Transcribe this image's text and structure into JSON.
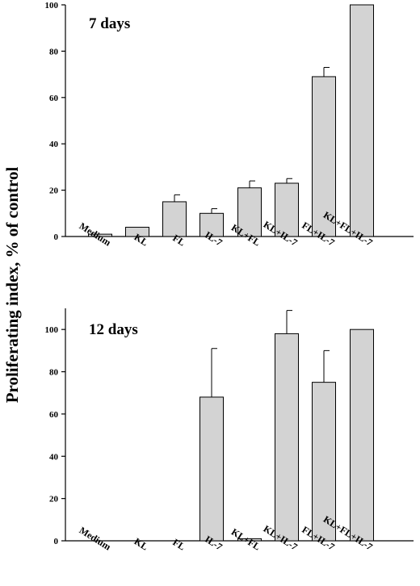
{
  "chart_data": [
    {
      "type": "bar",
      "title": "7 days",
      "ylabel": "Proliferating index, % of control",
      "xlabel": "",
      "categories": [
        "Medium",
        "KL",
        "FL",
        "IL-7",
        "KL+FL",
        "KL+IL-7",
        "FL+IL-7",
        "KL+FL+IL-7"
      ],
      "values": [
        1,
        4,
        15,
        10,
        21,
        23,
        69,
        100
      ],
      "errors": [
        0,
        0,
        3,
        2,
        3,
        2,
        4,
        0
      ],
      "ylim": [
        0,
        100
      ],
      "yticks": [
        0,
        20,
        40,
        60,
        80,
        100
      ],
      "bar_color": "#d3d3d3",
      "grid": false
    },
    {
      "type": "bar",
      "title": "12 days",
      "ylabel": "Proliferating index, % of control",
      "xlabel": "",
      "categories": [
        "Medium",
        "KL",
        "FL",
        "IL-7",
        "KL+FL",
        "KL+IL-7",
        "FL+IL-7",
        "KL+FL+IL-7"
      ],
      "values": [
        0,
        0,
        0,
        68,
        1,
        98,
        75,
        100
      ],
      "errors": [
        0,
        0,
        0,
        23,
        0,
        11,
        15,
        0
      ],
      "ylim": [
        0,
        110
      ],
      "yticks": [
        0,
        20,
        40,
        60,
        80,
        100
      ],
      "bar_color": "#d3d3d3",
      "grid": false
    }
  ],
  "shared_ylabel": "Proliferating index, % of control"
}
